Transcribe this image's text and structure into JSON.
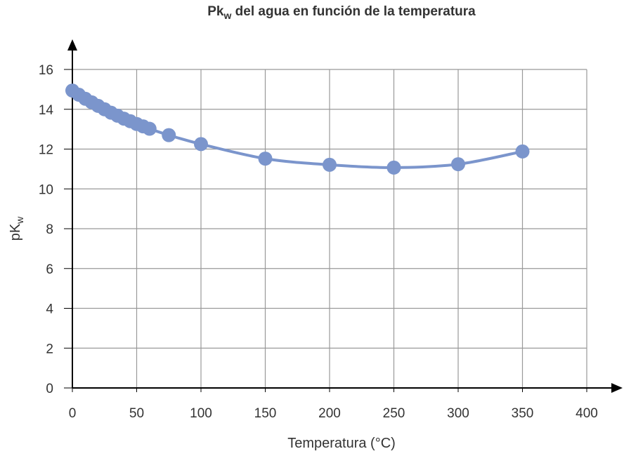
{
  "chart_data": {
    "type": "line",
    "title": "Pk",
    "title_sub": "w",
    "title_rest": " del agua en función de la temperatura",
    "xlabel": "Temperatura (°C)",
    "ylabel": "pK",
    "ylabel_sub": "w",
    "xlim": [
      0,
      400
    ],
    "ylim": [
      0,
      16
    ],
    "xticks": [
      0,
      50,
      100,
      150,
      200,
      250,
      300,
      350,
      400
    ],
    "yticks": [
      0,
      2,
      4,
      6,
      8,
      10,
      12,
      14,
      16
    ],
    "grid": true,
    "color": "#7b95cc",
    "x": [
      0,
      5,
      10,
      15,
      20,
      25,
      30,
      35,
      40,
      45,
      50,
      55,
      60,
      75,
      100,
      150,
      200,
      250,
      300,
      350
    ],
    "y": [
      14.94,
      14.73,
      14.53,
      14.35,
      14.17,
      14.0,
      13.83,
      13.68,
      13.53,
      13.4,
      13.26,
      13.14,
      13.02,
      12.7,
      12.25,
      11.52,
      11.21,
      11.07,
      11.24,
      11.88
    ]
  }
}
